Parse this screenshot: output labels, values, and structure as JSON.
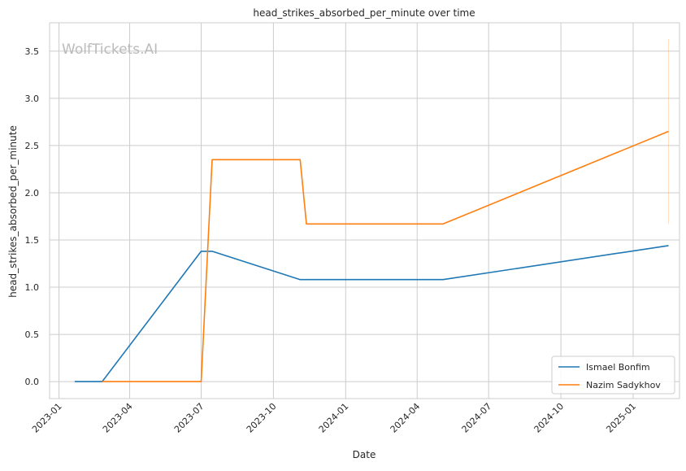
{
  "chart_data": {
    "type": "line",
    "title": "head_strikes_absorbed_per_minute over time",
    "xlabel": "Date",
    "ylabel": "head_strikes_absorbed_per_minute",
    "watermark": "WolfTickets.AI",
    "grid": true,
    "legend_position": "lower right",
    "x_ticks": [
      "2023-01",
      "2023-04",
      "2023-07",
      "2023-10",
      "2024-01",
      "2024-04",
      "2024-07",
      "2024-10",
      "2025-01"
    ],
    "y_ticks": [
      "0.0",
      "0.5",
      "1.0",
      "1.5",
      "2.0",
      "2.5",
      "3.0",
      "3.5"
    ],
    "xlim": [
      "2022-12-20",
      "2025-03-01"
    ],
    "ylim": [
      -0.18,
      3.8
    ],
    "series": [
      {
        "name": "Ismael Bonfim",
        "color": "#1f77b4",
        "points": [
          {
            "x": "2023-01-21",
            "y": 0.0
          },
          {
            "x": "2023-02-25",
            "y": 0.0
          },
          {
            "x": "2023-07-01",
            "y": 1.38
          },
          {
            "x": "2023-07-15",
            "y": 1.38
          },
          {
            "x": "2023-11-04",
            "y": 1.08
          },
          {
            "x": "2024-05-04",
            "y": 1.08
          },
          {
            "x": "2025-02-15",
            "y": 1.44
          }
        ]
      },
      {
        "name": "Nazim Sadykhov",
        "color": "#ff7f0e",
        "points": [
          {
            "x": "2023-02-25",
            "y": 0.0
          },
          {
            "x": "2023-07-01",
            "y": 0.0
          },
          {
            "x": "2023-07-15",
            "y": 2.35
          },
          {
            "x": "2023-11-04",
            "y": 2.35
          },
          {
            "x": "2023-11-12",
            "y": 1.67
          },
          {
            "x": "2024-05-04",
            "y": 1.67
          },
          {
            "x": "2025-02-15",
            "y": 2.65
          }
        ],
        "error_bar": {
          "x": "2025-02-15",
          "low": 1.67,
          "high": 3.63
        }
      }
    ]
  }
}
